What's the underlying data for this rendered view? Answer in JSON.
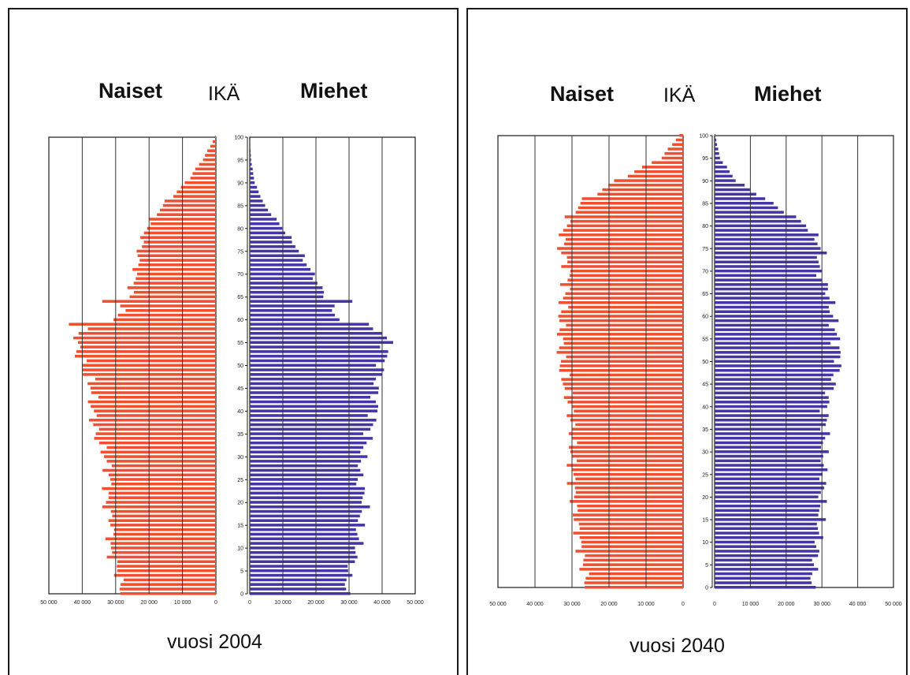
{
  "colors": {
    "women": "#f05030",
    "men": "#4535a5",
    "grid": "#333333",
    "frame": "#1a1a1a"
  },
  "chart_data": [
    {
      "type": "bar",
      "orientation": "horizontal-population-pyramid",
      "year_label": "vuosi 2004",
      "header_left": "Naiset",
      "header_center": "IKÄ",
      "header_right": "Miehet",
      "x_ticks_left": [
        "50 000",
        "40 000",
        "30 000",
        "20 000",
        "10 000",
        "0"
      ],
      "x_ticks_right": [
        "0",
        "10 000",
        "20 000",
        "30 000",
        "40 000",
        "50 000"
      ],
      "y_ticks": [
        "0",
        "5",
        "10",
        "15",
        "20",
        "25",
        "30",
        "35",
        "40",
        "45",
        "50",
        "55",
        "60",
        "65",
        "70",
        "75",
        "80",
        "85",
        "90",
        "95",
        "100"
      ],
      "xlim": [
        0,
        50000
      ],
      "ylim": [
        0,
        100
      ],
      "series": [
        {
          "name": "Naiset",
          "profile_ages": [
            0,
            5,
            10,
            15,
            20,
            25,
            30,
            35,
            40,
            45,
            50,
            55,
            58,
            60,
            65,
            70,
            75,
            80,
            85,
            90,
            95,
            100
          ],
          "profile_values": [
            28000,
            29500,
            32000,
            31000,
            33000,
            32000,
            33000,
            36000,
            37000,
            37000,
            40000,
            42000,
            40000,
            30000,
            26000,
            24000,
            23000,
            21000,
            16000,
            9000,
            4000,
            200
          ],
          "spikes": [
            {
              "age": 59,
              "value": 44000
            },
            {
              "age": 64,
              "value": 34000
            }
          ]
        },
        {
          "name": "Miehet",
          "profile_ages": [
            0,
            5,
            10,
            15,
            20,
            25,
            30,
            35,
            40,
            45,
            50,
            55,
            58,
            60,
            65,
            70,
            75,
            80,
            85,
            90,
            95,
            100
          ],
          "profile_values": [
            29000,
            30000,
            33000,
            33000,
            35000,
            33000,
            34000,
            36000,
            38000,
            38000,
            40000,
            42000,
            39000,
            27000,
            23000,
            19000,
            15000,
            10000,
            4500,
            1500,
            400,
            0
          ],
          "spikes": [
            {
              "age": 59,
              "value": 36000
            },
            {
              "age": 64,
              "value": 31000
            }
          ]
        }
      ]
    },
    {
      "type": "bar",
      "orientation": "horizontal-population-pyramid",
      "year_label": "vuosi 2040",
      "header_left": "Naiset",
      "header_center": "IKÄ",
      "header_right": "Miehet",
      "x_ticks_left": [
        "50 000",
        "40 000",
        "30 000",
        "20 000",
        "10 000",
        "0"
      ],
      "x_ticks_right": [
        "0",
        "10 000",
        "20 000",
        "30 000",
        "40 000",
        "50 000"
      ],
      "y_ticks": [
        "0",
        "5",
        "10",
        "15",
        "20",
        "25",
        "30",
        "35",
        "40",
        "45",
        "50",
        "55",
        "60",
        "65",
        "70",
        "75",
        "80",
        "85",
        "90",
        "95",
        "100"
      ],
      "xlim": [
        0,
        50000
      ],
      "ylim": [
        0,
        100
      ],
      "series": [
        {
          "name": "Naiset",
          "profile_ages": [
            0,
            5,
            10,
            15,
            20,
            25,
            30,
            35,
            40,
            45,
            50,
            55,
            60,
            65,
            70,
            75,
            80,
            85,
            90,
            95,
            100
          ],
          "profile_values": [
            26000,
            27000,
            28000,
            29000,
            29500,
            30000,
            30000,
            30000,
            30500,
            32000,
            33000,
            33000,
            33000,
            32000,
            31000,
            33000,
            32000,
            28000,
            18000,
            6000,
            1000
          ],
          "spikes": []
        },
        {
          "name": "Miehet",
          "profile_ages": [
            0,
            5,
            10,
            15,
            20,
            25,
            30,
            35,
            40,
            45,
            50,
            55,
            60,
            65,
            70,
            75,
            80,
            85,
            90,
            95,
            100
          ],
          "profile_values": [
            27000,
            28000,
            29000,
            29500,
            30000,
            30500,
            30500,
            31000,
            31000,
            33000,
            35000,
            34000,
            33000,
            32000,
            29000,
            30000,
            26000,
            16000,
            6000,
            1500,
            200
          ],
          "spikes": []
        }
      ]
    }
  ]
}
